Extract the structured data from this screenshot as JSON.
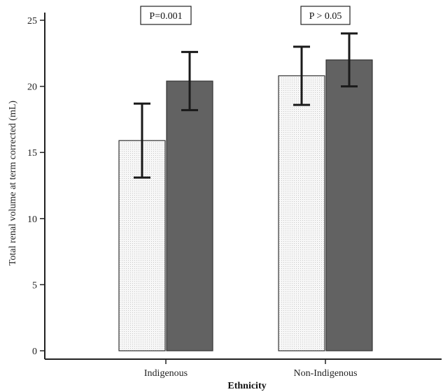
{
  "chart_data": {
    "type": "bar",
    "xlabel": "Ethnicity",
    "ylabel": "Total renal volume at term corrected (mL)",
    "ylim": [
      0,
      25
    ],
    "yticks": [
      0,
      5,
      10,
      15,
      20,
      25
    ],
    "grid": false,
    "categories": [
      "Indigenous",
      "Non-Indigenous"
    ],
    "series": [
      {
        "color": "#f2f2f2",
        "pattern": "light-dotted",
        "values": [
          15.9,
          20.8
        ],
        "errors": [
          2.8,
          2.2
        ]
      },
      {
        "color": "#626262",
        "pattern": "solid",
        "values": [
          20.4,
          22.0
        ],
        "errors": [
          2.2,
          2.0
        ]
      }
    ],
    "annotations": [
      "P=0.001",
      "P > 0.05"
    ]
  }
}
